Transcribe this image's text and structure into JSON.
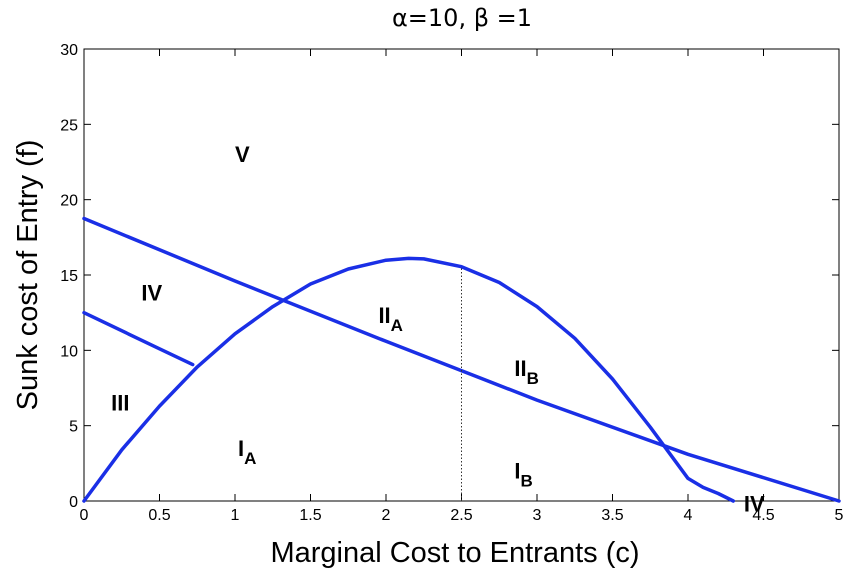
{
  "chart_data": {
    "type": "line",
    "title": "α=10, β =1",
    "xlabel": "Marginal Cost to Entrants (c)",
    "ylabel": "Sunk cost of Entry (f)",
    "xlim": [
      0,
      5
    ],
    "ylim": [
      0,
      30
    ],
    "xticks": [
      "0",
      "0.5",
      "1",
      "1.5",
      "2",
      "2.5",
      "3",
      "3.5",
      "4",
      "4.5",
      "5"
    ],
    "yticks": [
      "0",
      "5",
      "10",
      "15",
      "20",
      "25",
      "30"
    ],
    "grid": false,
    "line_color": "#1a2fe6",
    "series": [
      {
        "x": [
          0,
          0.25,
          0.5,
          0.75,
          1,
          1.25,
          1.5,
          1.75,
          2,
          2.15,
          2.25,
          2.5,
          2.75,
          3,
          3.25,
          3.5,
          3.75,
          4,
          4.1,
          4.2,
          4.3
        ],
        "y": [
          0,
          3.4,
          6.3,
          8.9,
          11.1,
          12.9,
          14.4,
          15.4,
          15.98,
          16.1,
          16.07,
          15.55,
          14.5,
          12.9,
          10.8,
          8.1,
          4.9,
          1.5,
          0.9,
          0.5,
          0
        ]
      },
      {
        "x": [
          0,
          1,
          2,
          3,
          4,
          5
        ],
        "y": [
          18.75,
          14.6,
          10.6,
          6.7,
          3.1,
          0
        ]
      },
      {
        "x": [
          0,
          0.5,
          0.72
        ],
        "y": [
          12.5,
          10.1,
          9.05
        ]
      }
    ],
    "reference_line": {
      "x": 2.5,
      "y_from": 0,
      "y_to": 15.55,
      "style": "dotted"
    },
    "annotations": [
      {
        "text": "V",
        "sub": "",
        "x": 1.0,
        "y": 22.5
      },
      {
        "text": "IV",
        "sub": "",
        "x": 0.38,
        "y": 13.3
      },
      {
        "text": "III",
        "sub": "",
        "x": 0.18,
        "y": 6.0
      },
      {
        "text": "II",
        "sub": "A",
        "x": 1.95,
        "y": 11.8
      },
      {
        "text": "II",
        "sub": "B",
        "x": 2.85,
        "y": 8.3
      },
      {
        "text": "I",
        "sub": "A",
        "x": 1.02,
        "y": 3.0
      },
      {
        "text": "I",
        "sub": "B",
        "x": 2.85,
        "y": 1.5
      },
      {
        "text": "IV",
        "sub": "",
        "x": 4.37,
        "y": -0.7
      }
    ]
  }
}
